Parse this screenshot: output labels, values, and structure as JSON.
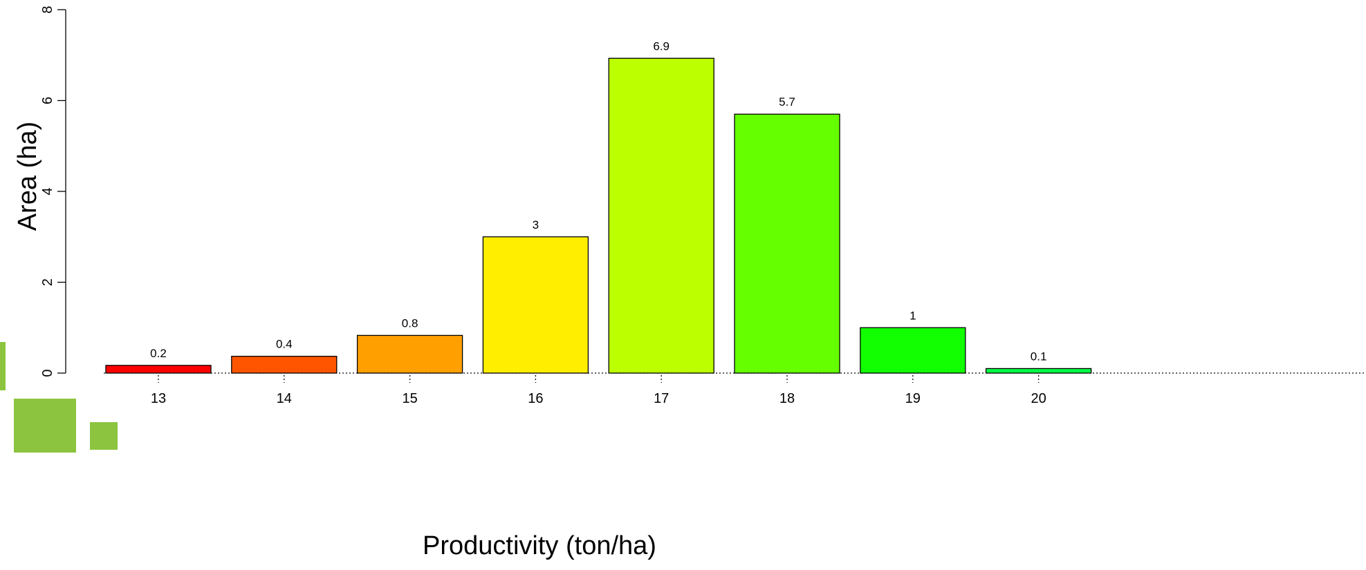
{
  "chart_data": {
    "type": "bar",
    "categories": [
      "13",
      "14",
      "15",
      "16",
      "17",
      "18",
      "19",
      "20"
    ],
    "values": [
      0.17,
      0.37,
      0.83,
      3.0,
      6.93,
      5.7,
      1.0,
      0.1
    ],
    "data_labels": [
      "0.2",
      "0.4",
      "0.8",
      "3",
      "6.9",
      "5.7",
      "1",
      "0.1"
    ],
    "colors": [
      "#ff0000",
      "#ff5500",
      "#ffa000",
      "#ffee00",
      "#bbff00",
      "#66ff00",
      "#11ff00",
      "#00ff44"
    ],
    "title": "",
    "xlabel": "Productivity (ton/ha)",
    "ylabel": "Area (ha)",
    "ylim": [
      0,
      8
    ],
    "yticks": [
      0,
      2,
      4,
      6,
      8
    ],
    "grid": false,
    "legend": "none",
    "baseline_style": "dotted"
  },
  "decoration": {
    "accent_color": "#8cc43f"
  }
}
